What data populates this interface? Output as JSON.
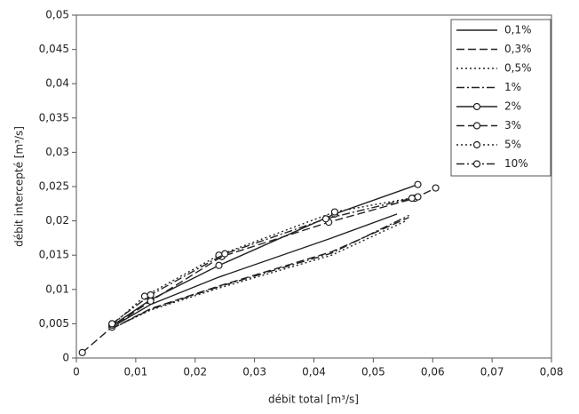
{
  "chart_data": {
    "type": "line",
    "x_label": "débit total [m³/s]",
    "y_label": "débit intercepté [m³/s]",
    "xlim": [
      0,
      0.08
    ],
    "xticks": [
      0,
      {
        "value": 0.01,
        "label": "0,01"
      },
      {
        "value": 0.02,
        "label": "0,02"
      },
      {
        "value": 0.03,
        "label": "0,03"
      },
      {
        "value": 0.04,
        "label": "0,04"
      },
      {
        "value": 0.05,
        "label": "0,05"
      },
      {
        "value": 0.06,
        "label": "0,06"
      },
      {
        "value": 0.07,
        "label": "0,07"
      },
      {
        "value": 0.08,
        "label": "0,08"
      }
    ],
    "ylim": [
      0,
      0.05
    ],
    "yticks": [
      0,
      {
        "value": 0.005,
        "label": "0,005"
      },
      {
        "value": 0.01,
        "label": "0,01"
      },
      {
        "value": 0.015,
        "label": "0,015"
      },
      {
        "value": 0.02,
        "label": "0,02"
      },
      {
        "value": 0.025,
        "label": "0,025"
      },
      {
        "value": 0.03,
        "label": "0,03"
      },
      {
        "value": 0.035,
        "label": "0,035"
      },
      {
        "value": 0.04,
        "label": "0,04"
      },
      {
        "value": 0.045,
        "label": "0,045"
      },
      {
        "value": 0.05,
        "label": "0,05"
      }
    ],
    "grid": false,
    "legend": "top-right",
    "series": [
      {
        "name": "0,1%",
        "color": "#222222",
        "dash": "solid",
        "marker": "none",
        "x": [
          0.006,
          0.0125,
          0.024,
          0.043,
          0.054
        ],
        "values": [
          0.0045,
          0.0078,
          0.0118,
          0.0175,
          0.021
        ]
      },
      {
        "name": "0,3%",
        "color": "#222222",
        "dash": "dashed",
        "marker": "none",
        "x": [
          0.006,
          0.0125,
          0.024,
          0.043,
          0.056
        ],
        "values": [
          0.0043,
          0.0072,
          0.0105,
          0.0155,
          0.0205
        ]
      },
      {
        "name": "0,5%",
        "color": "#222222",
        "dash": "dotted",
        "marker": "none",
        "x": [
          0.006,
          0.0125,
          0.024,
          0.043,
          0.0555
        ],
        "values": [
          0.0043,
          0.007,
          0.0102,
          0.015,
          0.02
        ]
      },
      {
        "name": "1%",
        "color": "#222222",
        "dash": "dashdot",
        "marker": "none",
        "x": [
          0.006,
          0.0125,
          0.024,
          0.043,
          0.056
        ],
        "values": [
          0.0043,
          0.0071,
          0.0104,
          0.0153,
          0.0208
        ]
      },
      {
        "name": "2%",
        "color": "#222222",
        "dash": "solid",
        "marker": "circle",
        "x": [
          0.006,
          0.0125,
          0.024,
          0.0435,
          0.0575
        ],
        "values": [
          0.0047,
          0.0085,
          0.0135,
          0.021,
          0.0253
        ]
      },
      {
        "name": "3%",
        "color": "#222222",
        "dash": "dashed",
        "marker": "circle",
        "x": [
          0.001,
          0.006,
          0.0125,
          0.0245,
          0.0425,
          0.057,
          0.0605
        ],
        "values": [
          0.0008,
          0.0045,
          0.0083,
          0.0148,
          0.0198,
          0.0233,
          0.0248
        ]
      },
      {
        "name": "5%",
        "color": "#222222",
        "dash": "dotted",
        "marker": "circle",
        "x": [
          0.006,
          0.0115,
          0.024,
          0.0435,
          0.0575
        ],
        "values": [
          0.0048,
          0.009,
          0.015,
          0.0213,
          0.0235
        ]
      },
      {
        "name": "10%",
        "color": "#222222",
        "dash": "dashdot",
        "marker": "circle",
        "x": [
          0.006,
          0.0125,
          0.025,
          0.042,
          0.0565
        ],
        "values": [
          0.005,
          0.0092,
          0.0152,
          0.0203,
          0.0233
        ]
      }
    ]
  }
}
